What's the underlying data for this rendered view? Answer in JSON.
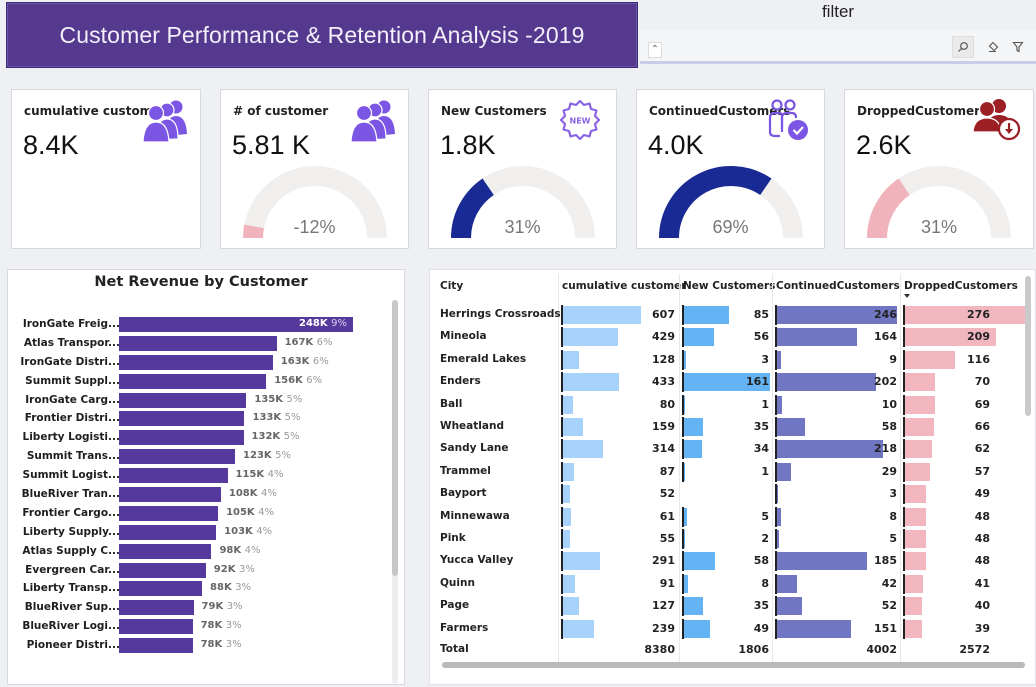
{
  "header": {
    "title": "Customer Performance & Retention Analysis -2019",
    "filter_label": "filter",
    "filter_icons": [
      "expand-icon",
      "search-icon",
      "eraser-icon",
      "funnel-icon"
    ]
  },
  "colors": {
    "brand_purple": "#54398e",
    "revenue_bar": "#56399c",
    "gauge_track": "#f0efee",
    "gauge_blue": "#1a2a94",
    "gauge_pink": "#f0b3bb",
    "icon_purple": "#7b55e3",
    "icon_red": "#9b1f24",
    "col_cumulative": "#a6d2fb",
    "col_new": "#64b3f4",
    "col_continued": "#7076c2",
    "col_dropped": "#f2b6bf"
  },
  "kpis": [
    {
      "label": "cumulative customer",
      "value": "8.4K",
      "icon": "people-group-icon",
      "gauge": null
    },
    {
      "label": "# of customer",
      "value": "5.81 K",
      "icon": "people-group-icon",
      "gauge": {
        "percent_text": "-12%",
        "fraction": 0.06,
        "color": "pink"
      }
    },
    {
      "label": "New Customers",
      "value": "1.8K",
      "icon": "new-badge-icon",
      "gauge": {
        "percent_text": "31%",
        "fraction": 0.31,
        "color": "blue"
      }
    },
    {
      "label": "ContinuedCustomers",
      "value": "4.0K",
      "icon": "people-check-icon",
      "gauge": {
        "percent_text": "69%",
        "fraction": 0.69,
        "color": "blue"
      }
    },
    {
      "label": "DroppedCustomers",
      "value": "2.6K",
      "icon": "people-download-icon",
      "gauge": {
        "percent_text": "31%",
        "fraction": 0.31,
        "color": "pink"
      }
    }
  ],
  "chart_data": {
    "type": "bar",
    "orientation": "horizontal",
    "title": "Net Revenue by Customer",
    "xlabel": "",
    "ylabel": "",
    "xlim": [
      0,
      248000
    ],
    "categories": [
      "IronGate Freig...",
      "Atlas Transpor...",
      "IronGate Distri...",
      "Summit Suppl...",
      "IronGate Carg...",
      "Frontier Distri...",
      "Liberty Logisti...",
      "Summit Trans...",
      "Summit Logist...",
      "BlueRiver Tran...",
      "Frontier Cargo...",
      "Liberty Supply...",
      "Atlas Supply C...",
      "Evergreen Car...",
      "Liberty Transp...",
      "BlueRiver Sup...",
      "BlueRiver Logi...",
      "Pioneer Distri..."
    ],
    "values": [
      248000,
      167000,
      163000,
      156000,
      135000,
      133000,
      132000,
      123000,
      115000,
      108000,
      105000,
      103000,
      98000,
      92000,
      88000,
      79000,
      78000,
      78000
    ],
    "value_labels": [
      "248K",
      "167K",
      "163K",
      "156K",
      "135K",
      "133K",
      "132K",
      "123K",
      "115K",
      "108K",
      "105K",
      "103K",
      "98K",
      "92K",
      "88K",
      "79K",
      "78K",
      "78K"
    ],
    "percent_labels": [
      "9%",
      "6%",
      "6%",
      "6%",
      "5%",
      "5%",
      "5%",
      "5%",
      "4%",
      "4%",
      "4%",
      "4%",
      "4%",
      "3%",
      "3%",
      "3%",
      "3%",
      "3%"
    ],
    "grid": false,
    "legend": "none"
  },
  "table": {
    "columns": [
      "City",
      "cumulative customer",
      "New Customers",
      "ContinuedCustomers",
      "DroppedCustomers"
    ],
    "sorted_column": "DroppedCustomers",
    "sort_direction": "descending",
    "rows": [
      {
        "city": "Herrings Crossroads",
        "cumulative": 607,
        "new": 85,
        "continued": 246,
        "dropped": 276
      },
      {
        "city": "Mineola",
        "cumulative": 429,
        "new": 56,
        "continued": 164,
        "dropped": 209
      },
      {
        "city": "Emerald Lakes",
        "cumulative": 128,
        "new": 3,
        "continued": 9,
        "dropped": 116
      },
      {
        "city": "Enders",
        "cumulative": 433,
        "new": 161,
        "continued": 202,
        "dropped": 70
      },
      {
        "city": "Ball",
        "cumulative": 80,
        "new": 1,
        "continued": 10,
        "dropped": 69
      },
      {
        "city": "Wheatland",
        "cumulative": 159,
        "new": 35,
        "continued": 58,
        "dropped": 66
      },
      {
        "city": "Sandy Lane",
        "cumulative": 314,
        "new": 34,
        "continued": 218,
        "dropped": 62
      },
      {
        "city": "Trammel",
        "cumulative": 87,
        "new": 1,
        "continued": 29,
        "dropped": 57
      },
      {
        "city": "Bayport",
        "cumulative": 52,
        "new": null,
        "continued": 3,
        "dropped": 49
      },
      {
        "city": "Minnewawa",
        "cumulative": 61,
        "new": 5,
        "continued": 8,
        "dropped": 48
      },
      {
        "city": "Pink",
        "cumulative": 55,
        "new": 2,
        "continued": 5,
        "dropped": 48
      },
      {
        "city": "Yucca Valley",
        "cumulative": 291,
        "new": 58,
        "continued": 185,
        "dropped": 48
      },
      {
        "city": "Quinn",
        "cumulative": 91,
        "new": 8,
        "continued": 42,
        "dropped": 41
      },
      {
        "city": "Page",
        "cumulative": 127,
        "new": 35,
        "continued": 52,
        "dropped": 40
      },
      {
        "city": "Farmers",
        "cumulative": 239,
        "new": 49,
        "continued": 151,
        "dropped": 39
      }
    ],
    "total": {
      "label": "Total",
      "cumulative": 8380,
      "new": 1806,
      "continued": 4002,
      "dropped": 2572
    }
  }
}
